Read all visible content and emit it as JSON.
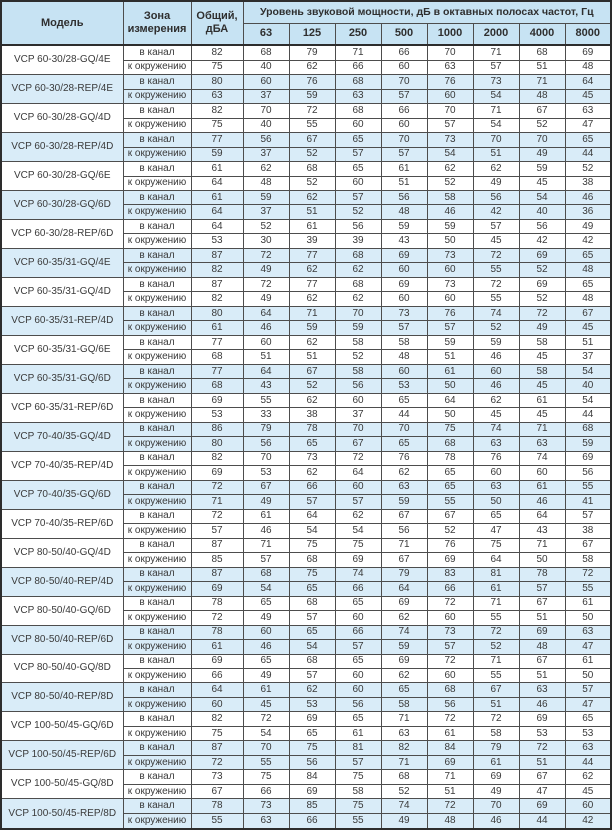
{
  "table": {
    "header": {
      "model": "Модель",
      "zone": "Зона измерения",
      "total": "Общий, дБА",
      "spl": "Уровень звуковой мощности, дБ в октавных полосах частот, Гц",
      "frequencies": [
        "63",
        "125",
        "250",
        "500",
        "1000",
        "2000",
        "4000",
        "8000"
      ]
    },
    "zone_labels": [
      "в канал",
      "к окружению"
    ],
    "colors": {
      "header_bg": "#c7e3f3",
      "shaded_row_bg": "#d9ecf8",
      "border": "#2d2d2d",
      "grid": "#4d4d4d",
      "text": "#3a3a3a"
    },
    "rows": [
      {
        "model": "VCP 60-30/28-GQ/4E",
        "shaded": false,
        "duct": {
          "total": 82,
          "bands": [
            68,
            79,
            71,
            66,
            70,
            71,
            68,
            69
          ]
        },
        "ambient": {
          "total": 75,
          "bands": [
            40,
            62,
            66,
            60,
            63,
            57,
            51,
            48
          ]
        }
      },
      {
        "model": "VCP 60-30/28-REP/4E",
        "shaded": true,
        "duct": {
          "total": 80,
          "bands": [
            60,
            76,
            68,
            70,
            76,
            73,
            71,
            64
          ]
        },
        "ambient": {
          "total": 63,
          "bands": [
            37,
            59,
            63,
            57,
            60,
            54,
            48,
            45
          ]
        }
      },
      {
        "model": "VCP 60-30/28-GQ/4D",
        "shaded": false,
        "duct": {
          "total": 82,
          "bands": [
            70,
            72,
            68,
            66,
            70,
            71,
            67,
            63
          ]
        },
        "ambient": {
          "total": 75,
          "bands": [
            40,
            55,
            60,
            60,
            57,
            54,
            52,
            47
          ]
        }
      },
      {
        "model": "VCP 60-30/28-REP/4D",
        "shaded": true,
        "duct": {
          "total": 77,
          "bands": [
            56,
            67,
            65,
            70,
            73,
            70,
            70,
            65
          ]
        },
        "ambient": {
          "total": 59,
          "bands": [
            37,
            52,
            57,
            57,
            54,
            51,
            49,
            44
          ]
        }
      },
      {
        "model": "VCP 60-30/28-GQ/6E",
        "shaded": false,
        "duct": {
          "total": 61,
          "bands": [
            62,
            68,
            65,
            61,
            62,
            62,
            59,
            52
          ]
        },
        "ambient": {
          "total": 64,
          "bands": [
            48,
            52,
            60,
            51,
            52,
            49,
            45,
            38
          ]
        }
      },
      {
        "model": "VCP 60-30/28-GQ/6D",
        "shaded": true,
        "duct": {
          "total": 61,
          "bands": [
            59,
            62,
            57,
            56,
            58,
            56,
            54,
            46
          ]
        },
        "ambient": {
          "total": 64,
          "bands": [
            37,
            51,
            52,
            48,
            46,
            42,
            40,
            36
          ]
        }
      },
      {
        "model": "VCP 60-30/28-REP/6D",
        "shaded": false,
        "duct": {
          "total": 64,
          "bands": [
            52,
            61,
            56,
            59,
            59,
            57,
            56,
            49
          ]
        },
        "ambient": {
          "total": 53,
          "bands": [
            30,
            39,
            39,
            43,
            50,
            45,
            42,
            42
          ]
        }
      },
      {
        "model": "VCP 60-35/31-GQ/4E",
        "shaded": true,
        "duct": {
          "total": 87,
          "bands": [
            72,
            77,
            68,
            69,
            73,
            72,
            69,
            65
          ]
        },
        "ambient": {
          "total": 82,
          "bands": [
            49,
            62,
            62,
            60,
            60,
            55,
            52,
            48
          ]
        }
      },
      {
        "model": "VCP 60-35/31-GQ/4D",
        "shaded": false,
        "duct": {
          "total": 87,
          "bands": [
            72,
            77,
            68,
            69,
            73,
            72,
            69,
            65
          ]
        },
        "ambient": {
          "total": 82,
          "bands": [
            49,
            62,
            62,
            60,
            60,
            55,
            52,
            48
          ]
        }
      },
      {
        "model": "VCP 60-35/31-REP/4D",
        "shaded": true,
        "duct": {
          "total": 80,
          "bands": [
            64,
            71,
            70,
            73,
            76,
            74,
            72,
            67
          ]
        },
        "ambient": {
          "total": 61,
          "bands": [
            46,
            59,
            59,
            57,
            57,
            52,
            49,
            45
          ]
        }
      },
      {
        "model": "VCP 60-35/31-GQ/6E",
        "shaded": false,
        "duct": {
          "total": 77,
          "bands": [
            60,
            62,
            58,
            58,
            59,
            59,
            58,
            51
          ]
        },
        "ambient": {
          "total": 68,
          "bands": [
            51,
            51,
            52,
            48,
            51,
            46,
            45,
            37
          ]
        }
      },
      {
        "model": "VCP 60-35/31-GQ/6D",
        "shaded": true,
        "duct": {
          "total": 77,
          "bands": [
            64,
            67,
            58,
            60,
            61,
            60,
            58,
            54
          ]
        },
        "ambient": {
          "total": 68,
          "bands": [
            43,
            52,
            56,
            53,
            50,
            46,
            45,
            40
          ]
        }
      },
      {
        "model": "VCP 60-35/31-REP/6D",
        "shaded": false,
        "duct": {
          "total": 69,
          "bands": [
            55,
            62,
            60,
            65,
            64,
            62,
            61,
            54
          ]
        },
        "ambient": {
          "total": 53,
          "bands": [
            33,
            38,
            37,
            44,
            50,
            45,
            45,
            44
          ]
        }
      },
      {
        "model": "VCP 70-40/35-GQ/4D",
        "shaded": true,
        "duct": {
          "total": 86,
          "bands": [
            79,
            78,
            70,
            70,
            75,
            74,
            71,
            68
          ]
        },
        "ambient": {
          "total": 80,
          "bands": [
            56,
            65,
            67,
            65,
            68,
            63,
            63,
            59
          ]
        }
      },
      {
        "model": "VCP 70-40/35-REP/4D",
        "shaded": false,
        "duct": {
          "total": 82,
          "bands": [
            70,
            73,
            72,
            76,
            78,
            76,
            74,
            69
          ]
        },
        "ambient": {
          "total": 69,
          "bands": [
            53,
            62,
            64,
            62,
            65,
            60,
            60,
            56
          ]
        }
      },
      {
        "model": "VCP 70-40/35-GQ/6D",
        "shaded": true,
        "duct": {
          "total": 72,
          "bands": [
            67,
            66,
            60,
            63,
            65,
            63,
            61,
            55
          ]
        },
        "ambient": {
          "total": 71,
          "bands": [
            49,
            57,
            57,
            59,
            55,
            50,
            46,
            41
          ]
        }
      },
      {
        "model": "VCP 70-40/35-REP/6D",
        "shaded": false,
        "duct": {
          "total": 72,
          "bands": [
            61,
            64,
            62,
            67,
            67,
            65,
            64,
            57
          ]
        },
        "ambient": {
          "total": 57,
          "bands": [
            46,
            54,
            54,
            56,
            52,
            47,
            43,
            38
          ]
        }
      },
      {
        "model": "VCP 80-50/40-GQ/4D",
        "shaded": false,
        "duct": {
          "total": 87,
          "bands": [
            71,
            75,
            75,
            71,
            76,
            75,
            71,
            67
          ]
        },
        "ambient": {
          "total": 85,
          "bands": [
            57,
            68,
            69,
            67,
            69,
            64,
            50,
            58
          ]
        }
      },
      {
        "model": "VCP 80-50/40-REP/4D",
        "shaded": true,
        "duct": {
          "total": 87,
          "bands": [
            68,
            75,
            74,
            79,
            83,
            81,
            78,
            72
          ]
        },
        "ambient": {
          "total": 69,
          "bands": [
            54,
            65,
            66,
            64,
            66,
            61,
            57,
            55
          ]
        }
      },
      {
        "model": "VCP 80-50/40-GQ/6D",
        "shaded": false,
        "duct": {
          "total": 78,
          "bands": [
            65,
            68,
            65,
            69,
            72,
            71,
            67,
            61
          ]
        },
        "ambient": {
          "total": 72,
          "bands": [
            49,
            57,
            60,
            62,
            60,
            55,
            51,
            50
          ]
        }
      },
      {
        "model": "VCP 80-50/40-REP/6D",
        "shaded": true,
        "duct": {
          "total": 78,
          "bands": [
            60,
            65,
            66,
            74,
            73,
            72,
            69,
            63
          ]
        },
        "ambient": {
          "total": 61,
          "bands": [
            46,
            54,
            57,
            59,
            57,
            52,
            48,
            47
          ]
        }
      },
      {
        "model": "VCP 80-50/40-GQ/8D",
        "shaded": false,
        "duct": {
          "total": 69,
          "bands": [
            65,
            68,
            65,
            69,
            72,
            71,
            67,
            61
          ]
        },
        "ambient": {
          "total": 66,
          "bands": [
            49,
            57,
            60,
            62,
            60,
            55,
            51,
            50
          ]
        }
      },
      {
        "model": "VCP 80-50/40-REP/8D",
        "shaded": true,
        "duct": {
          "total": 64,
          "bands": [
            61,
            62,
            60,
            65,
            68,
            67,
            63,
            57
          ]
        },
        "ambient": {
          "total": 60,
          "bands": [
            45,
            53,
            56,
            58,
            56,
            51,
            46,
            47
          ]
        }
      },
      {
        "model": "VCP 100-50/45-GQ/6D",
        "shaded": false,
        "duct": {
          "total": 82,
          "bands": [
            72,
            69,
            65,
            71,
            72,
            72,
            69,
            65
          ]
        },
        "ambient": {
          "total": 75,
          "bands": [
            54,
            65,
            61,
            63,
            61,
            58,
            53,
            53
          ]
        }
      },
      {
        "model": "VCP 100-50/45-REP/6D",
        "shaded": true,
        "duct": {
          "total": 87,
          "bands": [
            70,
            75,
            81,
            82,
            84,
            79,
            72,
            63
          ]
        },
        "ambient": {
          "total": 72,
          "bands": [
            55,
            56,
            57,
            71,
            69,
            61,
            51,
            44
          ]
        }
      },
      {
        "model": "VCP 100-50/45-GQ/8D",
        "shaded": false,
        "duct": {
          "total": 73,
          "bands": [
            75,
            84,
            75,
            68,
            71,
            69,
            67,
            62
          ]
        },
        "ambient": {
          "total": 67,
          "bands": [
            66,
            69,
            58,
            52,
            51,
            49,
            47,
            45
          ]
        }
      },
      {
        "model": "VCP 100-50/45-REP/8D",
        "shaded": true,
        "duct": {
          "total": 78,
          "bands": [
            73,
            85,
            75,
            74,
            72,
            70,
            69,
            60
          ]
        },
        "ambient": {
          "total": 55,
          "bands": [
            63,
            66,
            55,
            49,
            48,
            46,
            44,
            42
          ]
        }
      }
    ]
  }
}
